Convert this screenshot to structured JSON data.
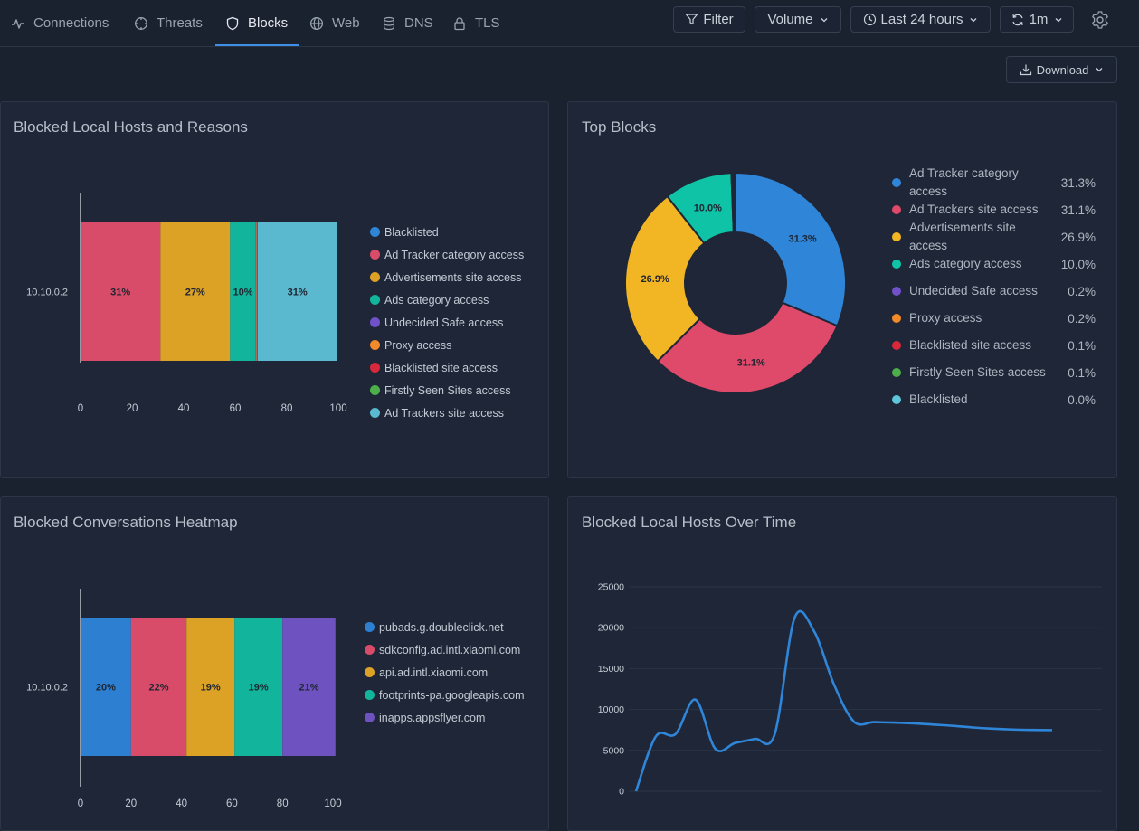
{
  "tabs": [
    {
      "label": "Connections",
      "icon": "activity-icon"
    },
    {
      "label": "Threats",
      "icon": "crosshair-icon"
    },
    {
      "label": "Blocks",
      "icon": "shield-icon",
      "active": true
    },
    {
      "label": "Web",
      "icon": "globe-icon"
    },
    {
      "label": "DNS",
      "icon": "database-icon"
    },
    {
      "label": "TLS",
      "icon": "lock-icon"
    }
  ],
  "toolbar": {
    "filter_label": "Filter",
    "volume_label": "Volume",
    "time_label": "Last 24 hours",
    "refresh_label": "1m",
    "download_label": "Download"
  },
  "colors": {
    "accent": "#3f8fe8",
    "blue": "#2f86d9",
    "red": "#e04a6a",
    "yellow": "#f2b523",
    "teal": "#0fc4a6",
    "purple": "#7051c9",
    "orange": "#f28a2a",
    "crimson": "#d9283c",
    "green": "#4daf4a",
    "lightblue": "#5ec6da"
  },
  "cards": {
    "hosts_reasons_title": "Blocked Local Hosts and Reasons",
    "top_blocks_title": "Top Blocks",
    "heatmap_title": "Blocked Conversations Heatmap",
    "over_time_title": "Blocked Local Hosts Over Time"
  },
  "chart_data": [
    {
      "type": "bar",
      "orientation": "horizontal-stacked",
      "title": "Blocked Local Hosts and Reasons",
      "categories": [
        "10.10.0.2"
      ],
      "xlim": [
        0,
        100
      ],
      "xticks": [
        "0",
        "20",
        "40",
        "60",
        "80",
        "100"
      ],
      "series": [
        {
          "name": "Blacklisted",
          "color": "#2f86d9",
          "values": [
            0
          ]
        },
        {
          "name": "Ad Tracker category access",
          "color": "#d84b69",
          "values": [
            31
          ],
          "label": "31%"
        },
        {
          "name": "Advertisements site access",
          "color": "#dba226",
          "values": [
            27
          ],
          "label": "27%"
        },
        {
          "name": "Ads category access",
          "color": "#12b59b",
          "values": [
            10
          ],
          "label": "10%"
        },
        {
          "name": "Undecided Safe access",
          "color": "#7051c9",
          "values": [
            0.2
          ]
        },
        {
          "name": "Proxy access",
          "color": "#f28a2a",
          "values": [
            0.2
          ]
        },
        {
          "name": "Blacklisted site access",
          "color": "#d9283c",
          "values": [
            0.1
          ]
        },
        {
          "name": "Firstly Seen Sites access",
          "color": "#4daf4a",
          "values": [
            0.1
          ]
        },
        {
          "name": "Ad Trackers site access",
          "color": "#5ab8cf",
          "values": [
            31
          ],
          "label": "31%"
        }
      ]
    },
    {
      "type": "pie",
      "title": "Top Blocks",
      "donut": true,
      "slices": [
        {
          "name": "Ad Tracker category access",
          "value": 31.3,
          "label": "31.3%",
          "color": "#2f86d9"
        },
        {
          "name": "Ad Trackers site access",
          "value": 31.1,
          "label": "31.1%",
          "color": "#e04a6a"
        },
        {
          "name": "Advertisements site access",
          "value": 26.9,
          "label": "26.9%",
          "color": "#f2b523"
        },
        {
          "name": "Ads category access",
          "value": 10.0,
          "label": "10.0%",
          "color": "#0fc4a6"
        },
        {
          "name": "Undecided Safe access",
          "value": 0.2,
          "label": "0.2%",
          "color": "#7051c9"
        },
        {
          "name": "Proxy access",
          "value": 0.2,
          "label": "0.2%",
          "color": "#f28a2a"
        },
        {
          "name": "Blacklisted site access",
          "value": 0.1,
          "label": "0.1%",
          "color": "#d9283c"
        },
        {
          "name": "Firstly Seen Sites access",
          "value": 0.1,
          "label": "0.1%",
          "color": "#4daf4a"
        },
        {
          "name": "Blacklisted",
          "value": 0.0,
          "label": "0.0%",
          "color": "#5ec6da"
        }
      ]
    },
    {
      "type": "bar",
      "orientation": "horizontal-stacked",
      "title": "Blocked Conversations Heatmap",
      "categories": [
        "10.10.0.2"
      ],
      "xlim": [
        0,
        100
      ],
      "xticks": [
        "0",
        "20",
        "40",
        "60",
        "80",
        "100"
      ],
      "series": [
        {
          "name": "pubads.g.doubleclick.net",
          "color": "#2d7fd1",
          "values": [
            20
          ],
          "label": "20%"
        },
        {
          "name": "sdkconfig.ad.intl.xiaomi.com",
          "color": "#d84b69",
          "values": [
            22
          ],
          "label": "22%"
        },
        {
          "name": "api.ad.intl.xiaomi.com",
          "color": "#dba226",
          "values": [
            19
          ],
          "label": "19%"
        },
        {
          "name": "footprints-pa.googleapis.com",
          "color": "#12b59b",
          "values": [
            19
          ],
          "label": "19%"
        },
        {
          "name": "inapps.appsflyer.com",
          "color": "#6e52c0",
          "values": [
            21
          ],
          "label": "21%"
        }
      ]
    },
    {
      "type": "line",
      "title": "Blocked Local Hosts Over Time",
      "ylim": [
        0,
        25000
      ],
      "yticks": [
        "0",
        "5000",
        "10000",
        "15000",
        "20000",
        "25000"
      ],
      "grid": true,
      "series": [
        {
          "color": "#2f86d9",
          "x": [
            0,
            1,
            2,
            3,
            4,
            5,
            6,
            7,
            8,
            9,
            10,
            11,
            12,
            13,
            14,
            15,
            16,
            17,
            18,
            19,
            20,
            21
          ],
          "values": [
            0,
            6700,
            7000,
            11200,
            5200,
            5900,
            6400,
            7000,
            21200,
            19500,
            13000,
            8500,
            8450,
            8400,
            8300,
            8150,
            8000,
            7800,
            7650,
            7550,
            7500,
            7480
          ]
        }
      ]
    }
  ]
}
